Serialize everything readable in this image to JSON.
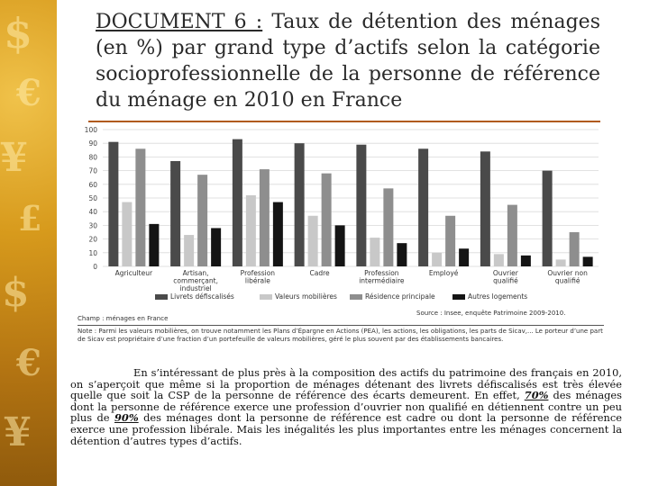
{
  "title": {
    "doc_label": "DOCUMENT 6 :",
    "text": "Taux de détention des ménages (en %) par grand type d’actifs selon la catégorie socioprofessionnelle de la personne de référence du ménage en 2010 en France"
  },
  "colors": {
    "livrets": "#4a4a4a",
    "valeurs": "#c8c8c8",
    "residence": "#8e8e8e",
    "autres": "#141414",
    "accent_rule": "#b05a1a"
  },
  "chart_data": {
    "type": "bar",
    "ylim": [
      0,
      100
    ],
    "yticks": [
      0,
      10,
      20,
      30,
      40,
      50,
      60,
      70,
      80,
      90,
      100
    ],
    "grid": true,
    "legend_position": "bottom",
    "categories": [
      "Agriculteur",
      "Artisan, commerçant, industriel",
      "Profession libérale",
      "Cadre",
      "Profession intermédiaire",
      "Employé",
      "Ouvrier qualifié",
      "Ouvrier non qualifié"
    ],
    "series": [
      {
        "name": "Livrets défiscalisés",
        "values": [
          91,
          77,
          93,
          90,
          89,
          86,
          84,
          70
        ]
      },
      {
        "name": "Valeurs mobilières",
        "values": [
          47,
          23,
          52,
          37,
          21,
          10,
          9,
          5
        ]
      },
      {
        "name": "Résidence principale",
        "values": [
          86,
          67,
          71,
          68,
          57,
          37,
          45,
          25
        ]
      },
      {
        "name": "Autres logements",
        "values": [
          31,
          28,
          47,
          30,
          17,
          13,
          8,
          7
        ]
      }
    ]
  },
  "champ": "Champ : ménages en France",
  "source": "Source : Insee, enquête Patrimoine 2009-2010.",
  "note": "Note : Parmi les valeurs mobilières, on trouve notamment les Plans d’Épargne en Actions (PEA), les actions, les obligations, les parts de Sicav,... Le porteur d’une part de Sicav est propriétaire d’une fraction d’un portefeuille de valeurs mobilières, géré le plus souvent par des établissements bancaires.",
  "paragraph": {
    "p1": "En s’intéressant de plus près à la composition des actifs du patrimoine des français en 2010, on s’aperçoit que même si la proportion de ménages détenant des livrets défiscalisés est très élevée quelle que soit la CSP de la personne de référence des écarts demeurent. En effet,",
    "h1": "70%",
    "p2": "des ménages dont la personne de référence exerce une profession d’ouvrier non qualifié en détiennent contre un peu plus de",
    "h2": "90%",
    "p3": "des ménages dont la personne de référence est cadre ou dont la personne de référence exerce une profession libérale. Mais les inégalités les plus importantes entre les ménages concernent la détention d’autres types d’actifs."
  }
}
